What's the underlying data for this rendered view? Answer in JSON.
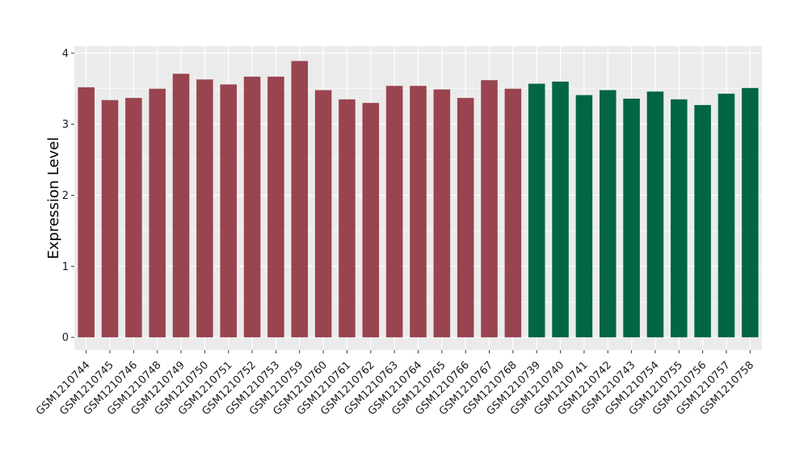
{
  "chart_data": {
    "type": "bar",
    "title": "",
    "xlabel": "",
    "ylabel": "Expression Level",
    "ylim": [
      -0.18,
      4.1
    ],
    "yticks": [
      0,
      1,
      2,
      3,
      4
    ],
    "grid": true,
    "panel_background": "#ebebeb",
    "categories": [
      "GSM1210744",
      "GSM1210745",
      "GSM1210746",
      "GSM1210748",
      "GSM1210749",
      "GSM1210750",
      "GSM1210751",
      "GSM1210752",
      "GSM1210753",
      "GSM1210759",
      "GSM1210760",
      "GSM1210761",
      "GSM1210762",
      "GSM1210763",
      "GSM1210764",
      "GSM1210765",
      "GSM1210766",
      "GSM1210767",
      "GSM1210768",
      "GSM1210739",
      "GSM1210740",
      "GSM1210741",
      "GSM1210742",
      "GSM1210743",
      "GSM1210754",
      "GSM1210755",
      "GSM1210756",
      "GSM1210757",
      "GSM1210758"
    ],
    "values": [
      3.52,
      3.34,
      3.37,
      3.5,
      3.71,
      3.63,
      3.56,
      3.67,
      3.67,
      3.89,
      3.48,
      3.35,
      3.3,
      3.54,
      3.54,
      3.49,
      3.37,
      3.62,
      3.5,
      3.57,
      3.6,
      3.41,
      3.48,
      3.36,
      3.46,
      3.35,
      3.27,
      3.43,
      3.51
    ],
    "bar_colors": [
      "#99444f",
      "#99444f",
      "#99444f",
      "#99444f",
      "#99444f",
      "#99444f",
      "#99444f",
      "#99444f",
      "#99444f",
      "#99444f",
      "#99444f",
      "#99444f",
      "#99444f",
      "#99444f",
      "#99444f",
      "#99444f",
      "#99444f",
      "#99444f",
      "#99444f",
      "#006644",
      "#006644",
      "#006644",
      "#006644",
      "#006644",
      "#006644",
      "#006644",
      "#006644",
      "#006644",
      "#006644"
    ]
  }
}
